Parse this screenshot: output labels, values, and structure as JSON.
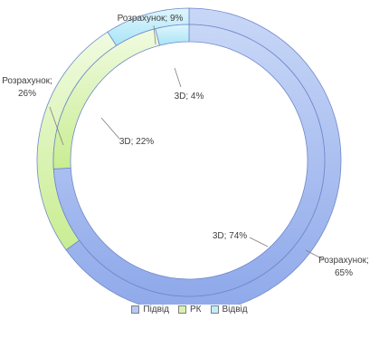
{
  "chart_data": {
    "type": "donut",
    "title": "",
    "rings": [
      {
        "ring": "outer",
        "slices": [
          {
            "series": "Підвід",
            "name": "Розрахунок",
            "value": 65,
            "label": "Розрахунок;\n65%"
          },
          {
            "series": "РК",
            "name": "Розрахунок",
            "value": 26,
            "label": "Розрахунок;\n26%"
          },
          {
            "series": "Відвід",
            "name": "Розрахунок",
            "value": 9,
            "label": "Розрахунок; 9%"
          }
        ]
      },
      {
        "ring": "inner",
        "slices": [
          {
            "series": "Підвід",
            "name": "3D",
            "value": 74,
            "label": "3D; 74%"
          },
          {
            "series": "РК",
            "name": "3D",
            "value": 22,
            "label": "3D; 22%"
          },
          {
            "series": "Відвід",
            "name": "3D",
            "value": 4,
            "label": "3D; 4%"
          }
        ]
      }
    ],
    "legend": {
      "position": "bottom",
      "items": [
        {
          "label": "Підвід",
          "color": "#b7c9f2"
        },
        {
          "label": "РК",
          "color": "#d6f2b0"
        },
        {
          "label": "Відвід",
          "color": "#bfeefb"
        }
      ]
    },
    "colors": {
      "Підвід": [
        "#c8d7f7",
        "#8fa9ea"
      ],
      "РК": [
        "#f0fbe0",
        "#c9ed92"
      ],
      "Відвід": [
        "#dff6fd",
        "#a8e4f6"
      ],
      "border": "#6f88c9"
    }
  }
}
